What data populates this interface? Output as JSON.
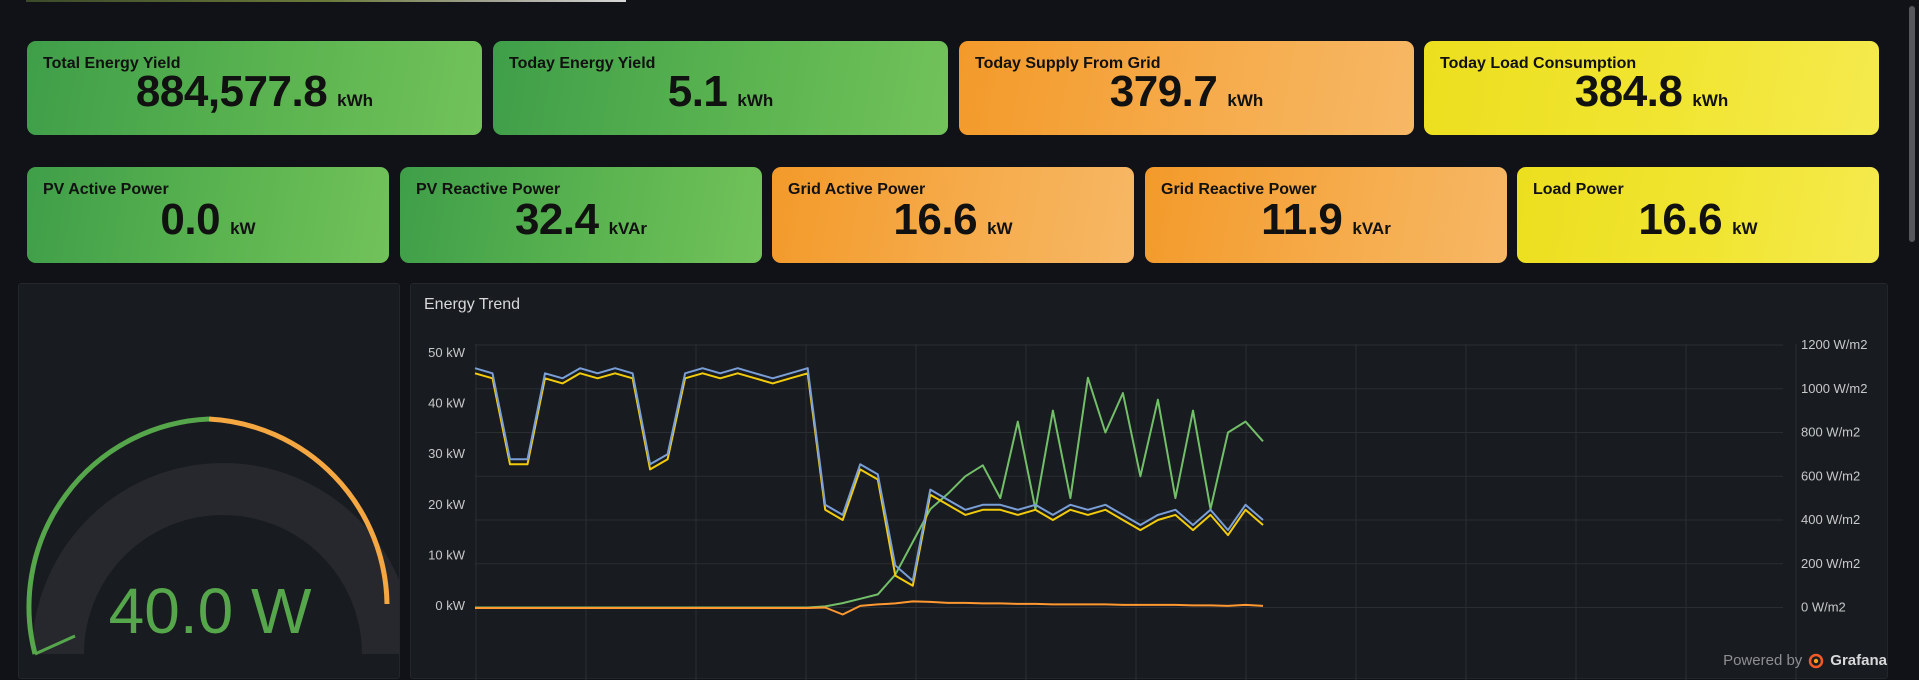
{
  "stats_row1": [
    {
      "title": "Total Energy Yield",
      "value": "884,577.8",
      "unit": "kWh",
      "color": "green"
    },
    {
      "title": "Today Energy Yield",
      "value": "5.1",
      "unit": "kWh",
      "color": "green"
    },
    {
      "title": "Today Supply From Grid",
      "value": "379.7",
      "unit": "kWh",
      "color": "orange"
    },
    {
      "title": "Today Load Consumption",
      "value": "384.8",
      "unit": "kWh",
      "color": "yellow"
    }
  ],
  "stats_row2": [
    {
      "title": "PV Active Power",
      "value": "0.0",
      "unit": "kW",
      "color": "green"
    },
    {
      "title": "PV Reactive Power",
      "value": "32.4",
      "unit": "kVAr",
      "color": "green"
    },
    {
      "title": "Grid Active Power",
      "value": "16.6",
      "unit": "kW",
      "color": "orange"
    },
    {
      "title": "Grid Reactive Power",
      "value": "11.9",
      "unit": "kVAr",
      "color": "orange"
    },
    {
      "title": "Load Power",
      "value": "16.6",
      "unit": "kW",
      "color": "yellow"
    }
  ],
  "gauge": {
    "value": "40.0 W",
    "colors": {
      "green": "#56a64b",
      "orange": "#f5a742",
      "track": "#26282e"
    }
  },
  "chart": {
    "title": "Energy Trend",
    "colors": {
      "blue": "#7a9ed6",
      "yellow": "#f2cc0c",
      "green": "#73bf69",
      "orange": "#ff9830",
      "grid": "#2a2d33",
      "tick": "#c7c8ca"
    }
  },
  "chart_data": {
    "type": "line",
    "title": "Energy Trend",
    "left_axis": {
      "ticks": [
        "0 kW",
        "10 kW",
        "20 kW",
        "30 kW",
        "40 kW",
        "50 kW"
      ],
      "values": [
        0,
        10,
        20,
        30,
        40,
        50
      ],
      "ylim": [
        -1,
        51
      ]
    },
    "right_axis": {
      "ticks": [
        "0 W/m2",
        "200 W/m2",
        "400 W/m2",
        "600 W/m2",
        "800 W/m2",
        "1000 W/m2",
        "1200 W/m2"
      ],
      "values": [
        0,
        200,
        400,
        600,
        800,
        1000,
        1200
      ]
    },
    "grid": true,
    "x": [
      0,
      4,
      8,
      12,
      16,
      20,
      24,
      28,
      32,
      36,
      40,
      44,
      48,
      52,
      56,
      60,
      64,
      68,
      72,
      76,
      80,
      84,
      88,
      92,
      96,
      100,
      104,
      108,
      112,
      116,
      120,
      124,
      128,
      132,
      136,
      140,
      144,
      148,
      152,
      156,
      160,
      164,
      168,
      172,
      176,
      180
    ],
    "series": [
      {
        "axis": "left",
        "values": [
          47,
          46,
          29,
          29,
          46,
          45,
          47,
          46,
          47,
          46,
          28,
          30,
          46,
          47,
          46,
          47,
          46,
          45,
          46,
          47,
          20,
          18,
          28,
          26,
          8,
          5,
          23,
          21,
          19,
          20,
          20,
          19,
          20,
          18,
          20,
          19,
          20,
          18,
          16,
          18,
          19,
          16,
          19,
          15,
          20,
          17
        ]
      },
      {
        "axis": "left",
        "values": [
          46,
          45,
          28,
          28,
          45,
          44,
          46,
          45,
          46,
          45,
          27,
          29,
          45,
          46,
          45,
          46,
          45,
          44,
          45,
          46,
          19,
          17,
          27,
          25,
          6,
          4,
          22,
          20,
          18,
          19,
          19,
          18,
          19,
          17,
          19,
          18,
          19,
          17,
          15,
          17,
          18,
          15,
          18,
          14,
          19,
          16
        ]
      },
      {
        "axis": "right",
        "values": [
          0,
          0,
          0,
          0,
          0,
          0,
          0,
          0,
          0,
          0,
          0,
          0,
          0,
          0,
          0,
          0,
          0,
          0,
          0,
          0,
          5,
          20,
          40,
          60,
          150,
          300,
          450,
          520,
          600,
          650,
          500,
          850,
          450,
          900,
          500,
          1050,
          800,
          980,
          600,
          950,
          500,
          900,
          450,
          800,
          850,
          760
        ]
      },
      {
        "axis": "left",
        "values": [
          -0.4,
          -0.4,
          -0.4,
          -0.4,
          -0.4,
          -0.4,
          -0.4,
          -0.4,
          -0.4,
          -0.4,
          -0.4,
          -0.4,
          -0.4,
          -0.4,
          -0.4,
          -0.4,
          -0.4,
          -0.4,
          -0.4,
          -0.4,
          -0.3,
          -1.7,
          0.0,
          0.3,
          0.5,
          0.9,
          0.8,
          0.6,
          0.6,
          0.5,
          0.5,
          0.4,
          0.4,
          0.3,
          0.3,
          0.3,
          0.3,
          0.2,
          0.2,
          0.2,
          0.2,
          0.1,
          0.1,
          0.0,
          0.2,
          0.0
        ]
      }
    ]
  },
  "footer": {
    "powered_by": "Powered by",
    "brand": "Grafana"
  }
}
